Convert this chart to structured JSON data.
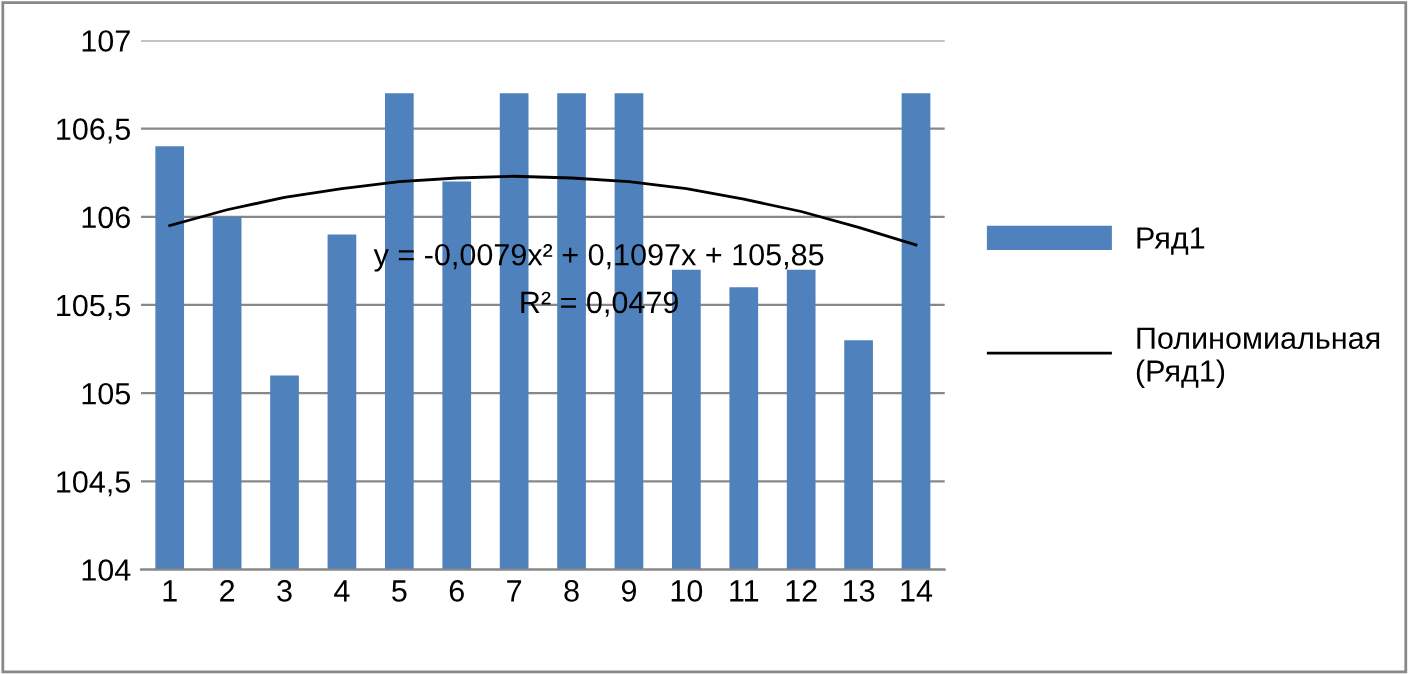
{
  "chart_data": {
    "type": "bar",
    "x": [
      1,
      2,
      3,
      4,
      5,
      6,
      7,
      8,
      9,
      10,
      11,
      12,
      13,
      14
    ],
    "xlim": [
      0.5,
      14.5
    ],
    "xticks": [
      1,
      2,
      3,
      4,
      5,
      6,
      7,
      8,
      9,
      10,
      11,
      12,
      13,
      14
    ],
    "ylim": [
      104,
      107
    ],
    "yticks": [
      104,
      {
        "value": 104.5,
        "label": "104,5"
      },
      105,
      {
        "value": 105.5,
        "label": "105,5"
      },
      106,
      {
        "value": 106.5,
        "label": "106,5"
      },
      107
    ],
    "grid": "y",
    "legend": "right",
    "series": [
      {
        "name": "Ряд1",
        "color": "#4f81bd",
        "values": [
          106.4,
          106.0,
          105.1,
          105.9,
          106.7,
          106.2,
          106.7,
          106.7,
          106.7,
          105.7,
          105.6,
          105.7,
          105.3,
          106.7
        ]
      },
      {
        "name": "Полиномиальная (Ряд1)",
        "type": "line",
        "color": "#000000",
        "x": [
          1,
          2,
          3,
          4,
          5,
          6,
          7,
          8,
          9,
          10,
          11,
          12,
          13,
          14
        ],
        "values": [
          105.95,
          106.04,
          106.11,
          106.16,
          106.2,
          106.22,
          106.23,
          106.22,
          106.2,
          106.16,
          106.1,
          106.03,
          105.94,
          105.84
        ]
      }
    ],
    "annotations": [
      "y = -0,0079x² + 0,1097x + 105,85",
      "R² = 0,0479"
    ]
  }
}
